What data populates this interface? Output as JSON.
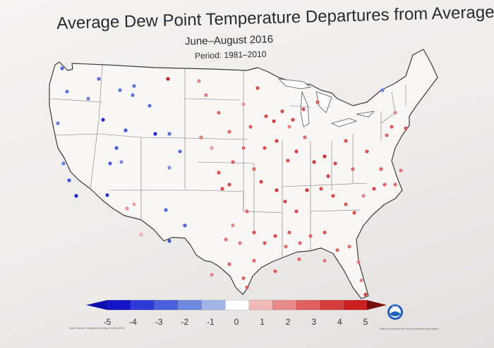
{
  "title": "Average Dew Point Temperature Departures from Average",
  "subtitle": "June–August 2016",
  "period": "Period: 1981–2010",
  "legend": {
    "min": -5,
    "max": 5,
    "ticks": [
      "-5",
      "-4",
      "-3",
      "-2",
      "-1",
      "0",
      "1",
      "2",
      "3",
      "4",
      "5"
    ],
    "colors": [
      "#1515c8",
      "#2e3ad6",
      "#4860dc",
      "#6e8ae0",
      "#a4b6e8",
      "#ffffff",
      "#f2b9b9",
      "#e98a8a",
      "#e06060",
      "#d63c3c",
      "#cc2020"
    ]
  },
  "source_credit": "Data Source: Integrated Surface Daily (ISD)",
  "agency_credit": "National Centers for Environmental Information",
  "logo_text": "NOAA",
  "stations": [
    {
      "loc": [
        88,
        97
      ],
      "v": -2.8
    },
    {
      "loc": [
        95,
        130
      ],
      "v": -2.5
    },
    {
      "loc": [
        82,
        175
      ],
      "v": -2.2
    },
    {
      "loc": [
        90,
        232
      ],
      "v": -2.3
    },
    {
      "loc": [
        98,
        256
      ],
      "v": -3.3
    },
    {
      "loc": [
        108,
        278
      ],
      "v": -4.5
    },
    {
      "loc": [
        125,
        140
      ],
      "v": -2.2
    },
    {
      "loc": [
        140,
        112
      ],
      "v": -2.6
    },
    {
      "loc": [
        146,
        170
      ],
      "v": -4.4
    },
    {
      "loc": [
        165,
        210
      ],
      "v": -3.0
    },
    {
      "loc": [
        172,
        230
      ],
      "v": -2.0
    },
    {
      "loc": [
        156,
        232
      ],
      "v": -2.9
    },
    {
      "loc": [
        152,
        277
      ],
      "v": -4.0
    },
    {
      "loc": [
        170,
        128
      ],
      "v": -2.5
    },
    {
      "loc": [
        190,
        122
      ],
      "v": -2.5
    },
    {
      "loc": [
        188,
        135
      ],
      "v": -2.6
    },
    {
      "loc": [
        178,
        185
      ],
      "v": -3.2
    },
    {
      "loc": [
        212,
        150
      ],
      "v": -2.6
    },
    {
      "loc": [
        220,
        190
      ],
      "v": -4.4
    },
    {
      "loc": [
        240,
        190
      ],
      "v": -2.6
    },
    {
      "loc": [
        240,
        238
      ],
      "v": -2.0
    },
    {
      "loc": [
        255,
        215
      ],
      "v": -2.7
    },
    {
      "loc": [
        235,
        298
      ],
      "v": -2.8
    },
    {
      "loc": [
        262,
        320
      ],
      "v": -2.9
    },
    {
      "loc": [
        240,
        342
      ],
      "v": -3.3
    },
    {
      "loc": [
        238,
        112
      ],
      "v": 4.5
    },
    {
      "loc": [
        180,
        296
      ],
      "v": 1.8
    },
    {
      "loc": [
        190,
        290
      ],
      "v": 1.5
    },
    {
      "loc": [
        200,
        333
      ],
      "v": 1.2
    },
    {
      "loc": [
        542,
        128
      ],
      "v": -2.2
    },
    {
      "loc": [
        282,
        115
      ],
      "v": 2.0
    },
    {
      "loc": [
        292,
        135
      ],
      "v": 2.2
    },
    {
      "loc": [
        310,
        160
      ],
      "v": 2.5
    },
    {
      "loc": [
        285,
        195
      ],
      "v": 2.2
    },
    {
      "loc": [
        300,
        210
      ],
      "v": 1.6
    },
    {
      "loc": [
        325,
        187
      ],
      "v": 2.5
    },
    {
      "loc": [
        345,
        148
      ],
      "v": 1.6
    },
    {
      "loc": [
        365,
        125
      ],
      "v": 3.0
    },
    {
      "loc": [
        355,
        180
      ],
      "v": 2.8
    },
    {
      "loc": [
        330,
        230
      ],
      "v": 2.8
    },
    {
      "loc": [
        310,
        245
      ],
      "v": 3.0
    },
    {
      "loc": [
        315,
        268
      ],
      "v": 3.2
    },
    {
      "loc": [
        325,
        262
      ],
      "v": 3.2
    },
    {
      "loc": [
        345,
        210
      ],
      "v": 2.5
    },
    {
      "loc": [
        360,
        240
      ],
      "v": 2.5
    },
    {
      "loc": [
        375,
        210
      ],
      "v": 3.0
    },
    {
      "loc": [
        388,
        172
      ],
      "v": 3.5
    },
    {
      "loc": [
        400,
        158
      ],
      "v": 3.3
    },
    {
      "loc": [
        410,
        180
      ],
      "v": 2.0
    },
    {
      "loc": [
        392,
        200
      ],
      "v": 3.6
    },
    {
      "loc": [
        408,
        228
      ],
      "v": 3.0
    },
    {
      "loc": [
        420,
        215
      ],
      "v": 3.5
    },
    {
      "loc": [
        432,
        195
      ],
      "v": 2.5
    },
    {
      "loc": [
        445,
        230
      ],
      "v": 3.8
    },
    {
      "loc": [
        460,
        222
      ],
      "v": 4.0
    },
    {
      "loc": [
        465,
        250
      ],
      "v": 3.5
    },
    {
      "loc": [
        475,
        232
      ],
      "v": 3.2
    },
    {
      "loc": [
        490,
        200
      ],
      "v": 3.0
    },
    {
      "loc": [
        500,
        240
      ],
      "v": 2.5
    },
    {
      "loc": [
        520,
        215
      ],
      "v": 3.0
    },
    {
      "loc": [
        540,
        240
      ],
      "v": 2.7
    },
    {
      "loc": [
        548,
        192
      ],
      "v": 2.5
    },
    {
      "loc": [
        555,
        180
      ],
      "v": 2.8
    },
    {
      "loc": [
        450,
        145
      ],
      "v": 2.8
    },
    {
      "loc": [
        430,
        155
      ],
      "v": 3.0
    },
    {
      "loc": [
        415,
        170
      ],
      "v": 3.3
    },
    {
      "loc": [
        377,
        165
      ],
      "v": 3.1
    },
    {
      "loc": [
        370,
        258
      ],
      "v": 3.5
    },
    {
      "loc": [
        392,
        270
      ],
      "v": 3.8
    },
    {
      "loc": [
        404,
        286
      ],
      "v": 3.3
    },
    {
      "loc": [
        420,
        300
      ],
      "v": 3.0
    },
    {
      "loc": [
        435,
        270
      ],
      "v": 4.0
    },
    {
      "loc": [
        455,
        268
      ],
      "v": 3.0
    },
    {
      "loc": [
        472,
        278
      ],
      "v": 3.2
    },
    {
      "loc": [
        490,
        290
      ],
      "v": 2.8
    },
    {
      "loc": [
        502,
        302
      ],
      "v": 3.0
    },
    {
      "loc": [
        515,
        278
      ],
      "v": 2.0
    },
    {
      "loc": [
        530,
        268
      ],
      "v": 3.3
    },
    {
      "loc": [
        545,
        262
      ],
      "v": 2.6
    },
    {
      "loc": [
        560,
        262
      ],
      "v": 2.5
    },
    {
      "loc": [
        568,
        242
      ],
      "v": 2.3
    },
    {
      "loc": [
        350,
        300
      ],
      "v": 2.5
    },
    {
      "loc": [
        330,
        320
      ],
      "v": 2.0
    },
    {
      "loc": [
        320,
        340
      ],
      "v": 2.2
    },
    {
      "loc": [
        340,
        345
      ],
      "v": 2.2
    },
    {
      "loc": [
        360,
        330
      ],
      "v": 3.0
    },
    {
      "loc": [
        375,
        345
      ],
      "v": 2.8
    },
    {
      "loc": [
        390,
        335
      ],
      "v": 3.0
    },
    {
      "loc": [
        410,
        330
      ],
      "v": 2.8
    },
    {
      "loc": [
        425,
        345
      ],
      "v": 2.5
    },
    {
      "loc": [
        440,
        335
      ],
      "v": 2.6
    },
    {
      "loc": [
        460,
        330
      ],
      "v": 3.0
    },
    {
      "loc": [
        478,
        355
      ],
      "v": 2.6
    },
    {
      "loc": [
        495,
        350
      ],
      "v": 2.4
    },
    {
      "loc": [
        508,
        372
      ],
      "v": 2.2
    },
    {
      "loc": [
        512,
        398
      ],
      "v": 2.0
    },
    {
      "loc": [
        518,
        418
      ],
      "v": 3.5
    },
    {
      "loc": [
        300,
        390
      ],
      "v": 2.0
    },
    {
      "loc": [
        325,
        375
      ],
      "v": 2.5
    },
    {
      "loc": [
        345,
        395
      ],
      "v": 2.6
    },
    {
      "loc": [
        350,
        408
      ],
      "v": 2.8
    },
    {
      "loc": [
        360,
        370
      ],
      "v": 2.5
    },
    {
      "loc": [
        390,
        385
      ],
      "v": 2.8
    },
    {
      "loc": [
        405,
        350
      ],
      "v": 2.4
    },
    {
      "loc": [
        424,
        368
      ],
      "v": 2.6
    },
    {
      "loc": [
        460,
        370
      ],
      "v": 2.2
    },
    {
      "loc": [
        575,
        182
      ],
      "v": 3.0
    },
    {
      "loc": [
        560,
        160
      ],
      "v": 2.0
    }
  ]
}
